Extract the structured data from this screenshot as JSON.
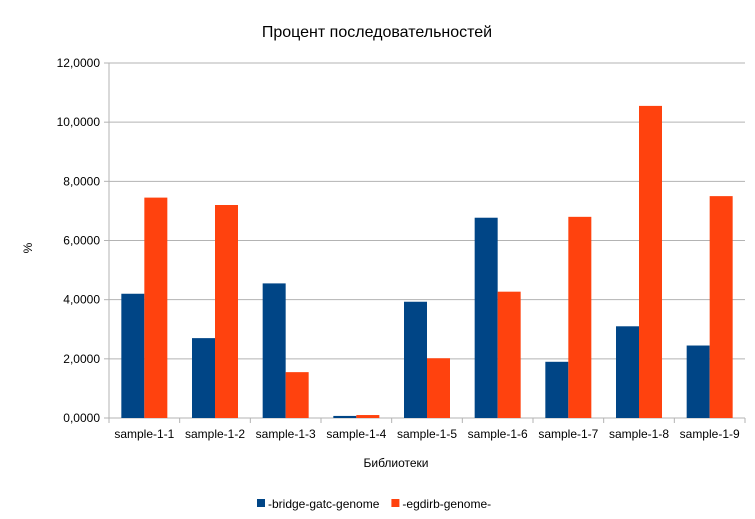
{
  "chart_data": {
    "type": "bar",
    "title": "Процент последовательностей",
    "xlabel": "Библиотеки",
    "ylabel": "%",
    "ylim": [
      0,
      12
    ],
    "yticks": [
      0,
      2,
      4,
      6,
      8,
      10,
      12
    ],
    "ytick_labels": [
      "0,0000",
      "2,0000",
      "4,0000",
      "6,0000",
      "8,0000",
      "10,0000",
      "12,0000"
    ],
    "grid": true,
    "legend_position": "bottom",
    "categories": [
      "sample-1-1",
      "sample-1-2",
      "sample-1-3",
      "sample-1-4",
      "sample-1-5",
      "sample-1-6",
      "sample-1-7",
      "sample-1-8",
      "sample-1-9"
    ],
    "series": [
      {
        "name": "-bridge-gatc-genome",
        "color": "#004586",
        "values": [
          4.2,
          2.7,
          4.55,
          0.07,
          3.93,
          6.77,
          1.9,
          3.1,
          2.45
        ]
      },
      {
        "name": "-egdirb-genome-",
        "color": "#ff420e",
        "values": [
          7.45,
          7.2,
          1.55,
          0.1,
          2.02,
          4.27,
          6.8,
          10.55,
          7.5
        ]
      }
    ]
  }
}
